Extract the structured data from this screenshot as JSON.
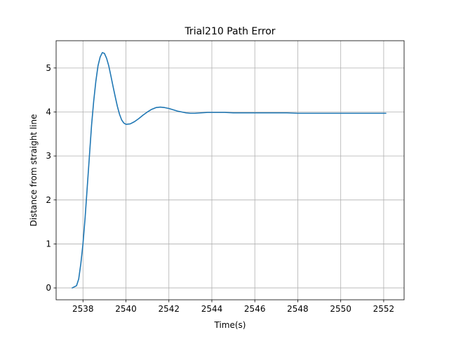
{
  "chart_data": {
    "type": "line",
    "title": "Trial210 Path Error",
    "xlabel": "Time(s)",
    "ylabel": "Distance from straight line",
    "xlim": [
      2536.75,
      2552.95
    ],
    "ylim": [
      -0.27,
      5.62
    ],
    "x_ticks": [
      2538,
      2540,
      2542,
      2544,
      2546,
      2548,
      2550,
      2552
    ],
    "y_ticks": [
      0,
      1,
      2,
      3,
      4,
      5
    ],
    "grid": true,
    "legend": "none",
    "colors": {
      "line": "#1f77b4",
      "grid": "#b0b0b0",
      "axes": "#000000"
    },
    "series": [
      {
        "x": [
          2537.5,
          2537.7,
          2537.8,
          2537.9,
          2538.0,
          2538.1,
          2538.2,
          2538.3,
          2538.4,
          2538.5,
          2538.6,
          2538.7,
          2538.8,
          2538.9,
          2539.0,
          2539.1,
          2539.2,
          2539.3,
          2539.4,
          2539.5,
          2539.6,
          2539.7,
          2539.8,
          2539.9,
          2540.0,
          2540.2,
          2540.4,
          2540.6,
          2540.8,
          2541.0,
          2541.2,
          2541.4,
          2541.6,
          2541.8,
          2542.0,
          2542.2,
          2542.4,
          2542.6,
          2542.8,
          2543.0,
          2543.2,
          2543.5,
          2543.8,
          2544.0,
          2544.3,
          2544.6,
          2545.0,
          2545.5,
          2546.0,
          2546.5,
          2547.0,
          2547.5,
          2548.0,
          2548.5,
          2549.0,
          2549.5,
          2550.0,
          2550.5,
          2551.0,
          2551.5,
          2552.1
        ],
        "y": [
          0.0,
          0.05,
          0.2,
          0.55,
          1.0,
          1.6,
          2.3,
          3.0,
          3.7,
          4.25,
          4.7,
          5.05,
          5.25,
          5.35,
          5.33,
          5.22,
          5.05,
          4.82,
          4.58,
          4.35,
          4.13,
          3.95,
          3.82,
          3.75,
          3.72,
          3.73,
          3.78,
          3.85,
          3.93,
          4.0,
          4.06,
          4.1,
          4.11,
          4.1,
          4.08,
          4.05,
          4.02,
          4.0,
          3.98,
          3.97,
          3.97,
          3.98,
          3.99,
          3.99,
          3.99,
          3.99,
          3.98,
          3.98,
          3.98,
          3.98,
          3.98,
          3.98,
          3.97,
          3.97,
          3.97,
          3.97,
          3.97,
          3.97,
          3.97,
          3.97,
          3.97
        ]
      }
    ]
  }
}
